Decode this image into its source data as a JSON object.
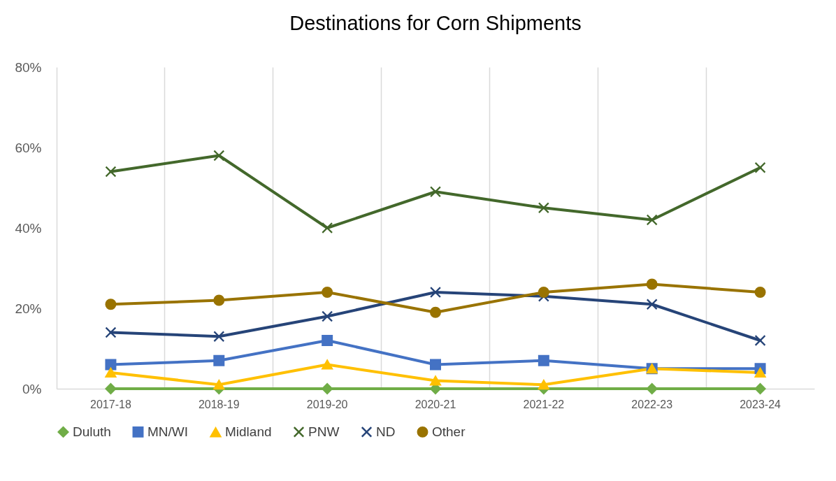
{
  "chart_data": {
    "type": "line",
    "title": "Destinations for Corn Shipments",
    "categories": [
      "2017-18",
      "2018-19",
      "2019-20",
      "2020-21",
      "2021-22",
      "2022-23",
      "2023-24"
    ],
    "ylim": [
      0,
      80
    ],
    "yticks": [
      {
        "value": 0,
        "label": "0%"
      },
      {
        "value": 20,
        "label": "20%"
      },
      {
        "value": 40,
        "label": "40%"
      },
      {
        "value": 60,
        "label": "60%"
      },
      {
        "value": 80,
        "label": "80%"
      }
    ],
    "grid": "x",
    "legend": "bottom",
    "series": [
      {
        "name": "Duluth",
        "color": "#70ad47",
        "marker": "diamond",
        "values": [
          0,
          0,
          0,
          0,
          0,
          0,
          0
        ]
      },
      {
        "name": "MN/WI",
        "color": "#4472c4",
        "marker": "square",
        "values": [
          6,
          7,
          12,
          6,
          7,
          5,
          5
        ]
      },
      {
        "name": "Midland",
        "color": "#ffc000",
        "marker": "triangle",
        "values": [
          4,
          1,
          6,
          2,
          1,
          5,
          4
        ]
      },
      {
        "name": "PNW",
        "color": "#43682b",
        "marker": "cross",
        "values": [
          54,
          58,
          40,
          49,
          45,
          42,
          55
        ]
      },
      {
        "name": "ND",
        "color": "#264478",
        "marker": "cross",
        "values": [
          14,
          13,
          18,
          24,
          23,
          21,
          12
        ]
      },
      {
        "name": "Other",
        "color": "#997300",
        "marker": "circle",
        "values": [
          21,
          22,
          24,
          19,
          24,
          26,
          24
        ]
      }
    ]
  }
}
